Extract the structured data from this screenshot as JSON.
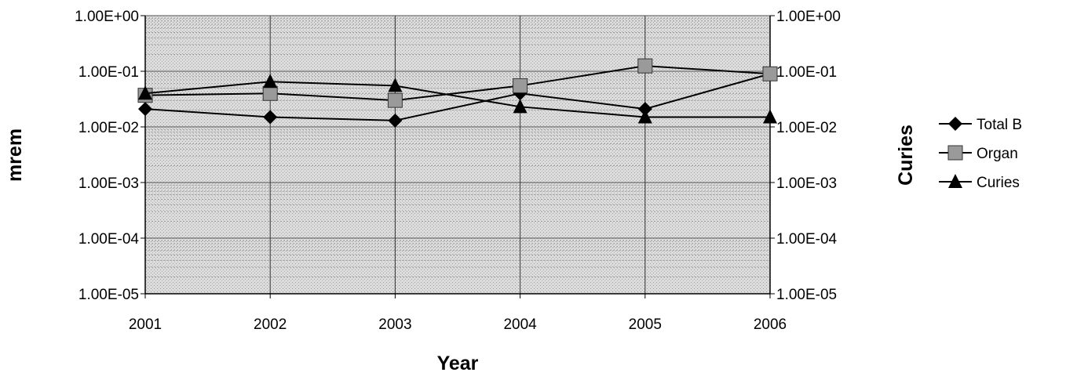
{
  "chart_data": {
    "type": "line",
    "categories": [
      "2001",
      "2002",
      "2003",
      "2004",
      "2005",
      "2006"
    ],
    "x": [
      2001,
      2002,
      2003,
      2004,
      2005,
      2006
    ],
    "xlabel": "Year",
    "ylabel": "mrem",
    "y2label": "Curies",
    "yscale": "log",
    "ylim": [
      1e-05,
      1
    ],
    "y2lim": [
      1e-05,
      1
    ],
    "yticks": [
      "1.00E+00",
      "1.00E-01",
      "1.00E-02",
      "1.00E-03",
      "1.00E-04",
      "1.00E-05"
    ],
    "y2ticks": [
      "1.00E+00",
      "1.00E-01",
      "1.00E-02",
      "1.00E-03",
      "1.00E-04",
      "1.00E-05"
    ],
    "grid": true,
    "legend_position": "right",
    "series": [
      {
        "name": "Total B",
        "marker": "diamond",
        "axis": "left",
        "values": [
          0.021,
          0.015,
          0.013,
          0.04,
          0.021,
          0.09
        ]
      },
      {
        "name": "Organ",
        "marker": "square",
        "axis": "left",
        "values": [
          0.037,
          0.04,
          0.03,
          0.055,
          0.125,
          0.09
        ]
      },
      {
        "name": "Curies",
        "marker": "triangle",
        "axis": "right",
        "values": [
          0.04,
          0.065,
          0.055,
          0.023,
          0.015,
          0.015
        ]
      }
    ],
    "colors": {
      "plot_background": "#d6d6d6",
      "gridline": "#8a8a8a",
      "line": "#000000",
      "square_marker_fill": "#9a9a9a"
    }
  }
}
